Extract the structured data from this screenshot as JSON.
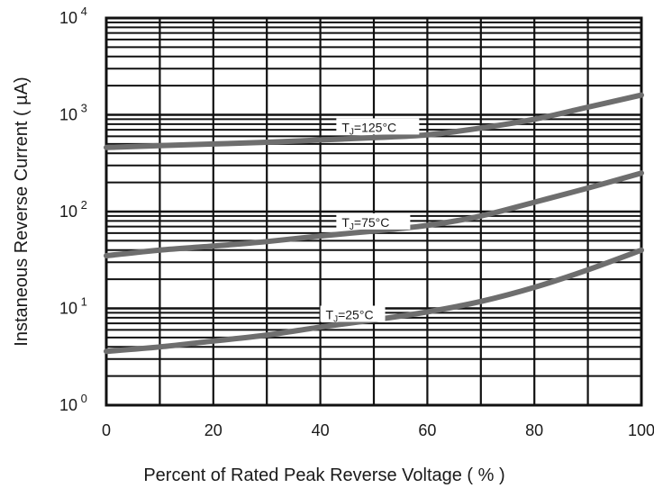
{
  "chart_data": {
    "type": "line",
    "xlabel": "Percent of Rated Peak Reverse Voltage ( % )",
    "ylabel": "Instaneous Reverse Current ( µA)",
    "x_ticks": [
      "0",
      "20",
      "40",
      "60",
      "80",
      "100"
    ],
    "y_ticks": [
      {
        "base": "10",
        "exp": "0"
      },
      {
        "base": "10",
        "exp": "1"
      },
      {
        "base": "10",
        "exp": "2"
      },
      {
        "base": "10",
        "exp": "3"
      },
      {
        "base": "10",
        "exp": "4"
      }
    ],
    "xlim": [
      0,
      100
    ],
    "ylim": [
      1,
      10000
    ],
    "yscale": "log",
    "grid": true,
    "colors": {
      "grid": "#111111",
      "curve": "#6e6e6e",
      "background": "#ffffff"
    },
    "series": [
      {
        "label": {
          "prefix": "T",
          "sub": "J",
          "suffix": "=125°C"
        },
        "x": [
          0,
          10,
          20,
          30,
          40,
          50,
          60,
          70,
          80,
          90,
          100
        ],
        "y": [
          460,
          480,
          500,
          520,
          550,
          580,
          620,
          730,
          900,
          1200,
          1600
        ]
      },
      {
        "label": {
          "prefix": "T",
          "sub": "J",
          "suffix": "=75°C"
        },
        "x": [
          0,
          10,
          20,
          30,
          40,
          50,
          60,
          70,
          80,
          90,
          100
        ],
        "y": [
          35,
          40,
          44,
          49,
          56,
          63,
          72,
          90,
          125,
          175,
          250
        ]
      },
      {
        "label": {
          "prefix": "T",
          "sub": "J",
          "suffix": "=25°C"
        },
        "x": [
          0,
          10,
          20,
          30,
          40,
          50,
          60,
          70,
          80,
          90,
          100
        ],
        "y": [
          3.6,
          4.0,
          4.6,
          5.3,
          6.4,
          7.6,
          9.2,
          11.8,
          16.5,
          25,
          40
        ]
      }
    ]
  }
}
